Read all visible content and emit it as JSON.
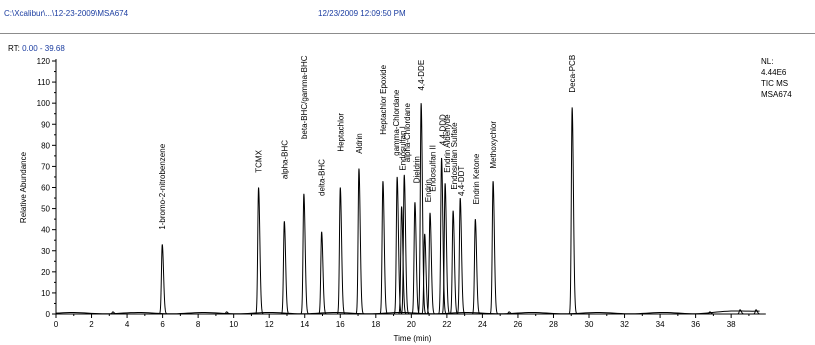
{
  "header": {
    "file_path": "C:\\Xcalibur\\...\\12-23-2009\\MSA674",
    "timestamp": "12/23/2009 12:09:50 PM"
  },
  "rt_range": {
    "label": "RT:",
    "value": "0.00 - 39.68"
  },
  "nl_info": {
    "nl_label": "NL:",
    "nl_value": "4.44E6",
    "scan_type": "TIC  MS",
    "sample": "MSA674"
  },
  "colors": {
    "trace": "#000000",
    "header_text": "#1a3ca0"
  },
  "chart_data": {
    "type": "line",
    "xlabel": "Time (min)",
    "ylabel": "Relative Abundance",
    "xlim": [
      0,
      39.68
    ],
    "ylim": [
      0,
      120
    ],
    "x_major_ticks": [
      0,
      2,
      4,
      6,
      8,
      10,
      12,
      14,
      16,
      18,
      20,
      22,
      24,
      26,
      28,
      30,
      32,
      34,
      36,
      38
    ],
    "y_major_ticks": [
      0,
      10,
      20,
      30,
      40,
      50,
      60,
      70,
      80,
      90,
      100,
      110,
      120
    ],
    "peaks": [
      {
        "rt": 5.98,
        "height": 33,
        "label": "1-bromo-2-nitrobenzene"
      },
      {
        "rt": 11.4,
        "height": 60,
        "label": "TCMX"
      },
      {
        "rt": 12.85,
        "height": 44,
        "label": "alpha-BHC"
      },
      {
        "rt": 13.95,
        "height": 57,
        "label": "beta-BHC/gamma-BHC"
      },
      {
        "rt": 14.95,
        "height": 39,
        "label": "delta-BHC"
      },
      {
        "rt": 16.0,
        "height": 60,
        "label": "Heptachlor"
      },
      {
        "rt": 17.05,
        "height": 69,
        "label": "Aldrin"
      },
      {
        "rt": 18.4,
        "height": 63,
        "label": "Heptachlor Epoxide"
      },
      {
        "rt": 19.2,
        "height": 65,
        "label": "gamma-Chlordane"
      },
      {
        "rt": 19.45,
        "height": 51,
        "label": "Endosulfan I"
      },
      {
        "rt": 19.6,
        "height": 66,
        "label": "alpha-Chlordane"
      },
      {
        "rt": 20.2,
        "height": 53,
        "label": "Dieldrin"
      },
      {
        "rt": 20.55,
        "height": 100,
        "label": "4,4-DDE"
      },
      {
        "rt": 20.75,
        "height": 38,
        "label": "Endrin"
      },
      {
        "rt": 21.05,
        "height": 48,
        "label": "Endosulfan II"
      },
      {
        "rt": 21.7,
        "height": 74,
        "label": "4,4-DDD"
      },
      {
        "rt": 21.9,
        "height": 62,
        "label": "Endrin Aldehyde"
      },
      {
        "rt": 22.35,
        "height": 49,
        "label": "Endosulfan Sulfate"
      },
      {
        "rt": 22.75,
        "height": 55,
        "label": "4,4-DDT"
      },
      {
        "rt": 23.6,
        "height": 45,
        "label": "Endrin Ketone"
      },
      {
        "rt": 24.6,
        "height": 63,
        "label": "Methoxychlor"
      },
      {
        "rt": 29.05,
        "height": 98,
        "label": "Deca-PCB"
      }
    ],
    "minor_peaks": [
      {
        "rt": 3.2,
        "height": 1
      },
      {
        "rt": 9.6,
        "height": 1
      },
      {
        "rt": 25.5,
        "height": 1
      },
      {
        "rt": 36.8,
        "height": 1
      },
      {
        "rt": 38.5,
        "height": 2
      },
      {
        "rt": 39.4,
        "height": 2
      }
    ],
    "peak_labels": [
      {
        "text": "1-bromo-2-nitrobenzene",
        "rt": 5.98,
        "anchor_y": 40
      },
      {
        "text": "TCMX",
        "rt": 11.4,
        "anchor_y": 67
      },
      {
        "text": "alpha-BHC",
        "rt": 12.85,
        "anchor_y": 64
      },
      {
        "text": "beta-BHC/gamma-BHC",
        "rt": 13.95,
        "anchor_y": 83
      },
      {
        "text": "delta-BHC",
        "rt": 14.95,
        "anchor_y": 56
      },
      {
        "text": "Heptachlor",
        "rt": 16.0,
        "anchor_y": 77
      },
      {
        "text": "Aldrin",
        "rt": 17.05,
        "anchor_y": 76
      },
      {
        "text": "Heptachlor Epoxide",
        "rt": 18.4,
        "anchor_y": 85
      },
      {
        "text": "gamma-Chlordane",
        "rt": 19.15,
        "anchor_y": 75
      },
      {
        "text": "Endosulfan I",
        "rt": 19.5,
        "anchor_y": 68
      },
      {
        "text": "alpha-Chlordane",
        "rt": 19.75,
        "anchor_y": 72
      },
      {
        "text": "Dieldrin",
        "rt": 20.3,
        "anchor_y": 62
      },
      {
        "text": "4,4-DDE",
        "rt": 20.55,
        "anchor_y": 106
      },
      {
        "text": "Endrin",
        "rt": 20.95,
        "anchor_y": 53
      },
      {
        "text": "Endosulfan II",
        "rt": 21.2,
        "anchor_y": 58
      },
      {
        "text": "4,4-DDD",
        "rt": 21.75,
        "anchor_y": 80
      },
      {
        "text": "Endrin Aldehyde",
        "rt": 22.0,
        "anchor_y": 67
      },
      {
        "text": "Endosulfan Sulfate",
        "rt": 22.4,
        "anchor_y": 59
      },
      {
        "text": "4,4-DDT",
        "rt": 22.8,
        "anchor_y": 56
      },
      {
        "text": "Endrin Ketone",
        "rt": 23.65,
        "anchor_y": 52
      },
      {
        "text": "Methoxychlor",
        "rt": 24.6,
        "anchor_y": 69
      },
      {
        "text": "Deca-PCB",
        "rt": 29.05,
        "anchor_y": 105
      }
    ]
  }
}
